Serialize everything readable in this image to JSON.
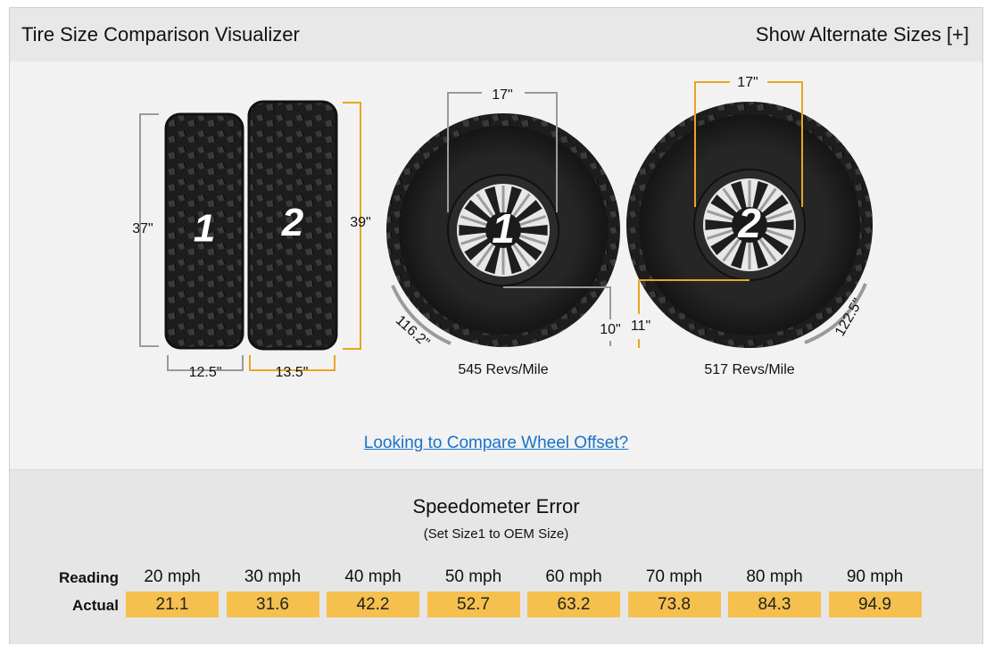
{
  "header": {
    "title": "Tire Size Comparison Visualizer",
    "toggle": "Show Alternate Sizes [+]"
  },
  "side_view": {
    "tire1": {
      "label": "1",
      "height": "37\"",
      "width": "12.5\""
    },
    "tire2": {
      "label": "2",
      "height": "39\"",
      "width": "13.5\""
    }
  },
  "front_view": {
    "tire1": {
      "label": "1",
      "wheel": "17\"",
      "sidewall": "10\"",
      "circumference": "116.2\"",
      "revs": "545 Revs/Mile"
    },
    "tire2": {
      "label": "2",
      "wheel": "17\"",
      "sidewall": "11\"",
      "circumference": "122.5\"",
      "revs": "517 Revs/Mile"
    }
  },
  "link": "Looking to Compare Wheel Offset?",
  "speedometer": {
    "title": "Speedometer Error",
    "subtitle": "(Set Size1 to OEM Size)",
    "reading_label": "Reading",
    "actual_label": "Actual",
    "readings": [
      "20 mph",
      "30 mph",
      "40 mph",
      "50 mph",
      "60 mph",
      "70 mph",
      "80 mph",
      "90 mph"
    ],
    "actuals": [
      "21.1",
      "31.6",
      "42.2",
      "52.7",
      "63.2",
      "73.8",
      "84.3",
      "94.9"
    ]
  }
}
